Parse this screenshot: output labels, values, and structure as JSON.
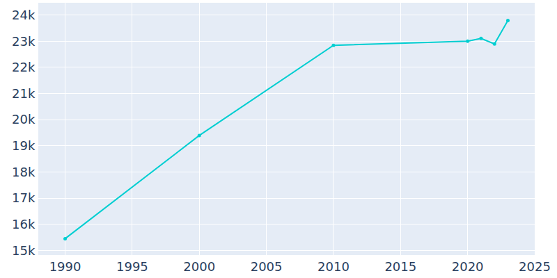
{
  "chart_data": {
    "type": "line",
    "x": [
      1990,
      2000,
      2010,
      2020,
      2021,
      2022,
      2023
    ],
    "values": [
      15447,
      19395,
      22842,
      23000,
      23105,
      22895,
      23790
    ],
    "color": "#00CED1",
    "marker": "circle",
    "line_style": "solid",
    "xlim": [
      1988,
      2025
    ],
    "xticks": [
      1990,
      1995,
      2000,
      2005,
      2010,
      2015,
      2020,
      2025
    ],
    "ylim": [
      14820,
      24470
    ],
    "yticks": [
      {
        "value": 15000,
        "label": "15k"
      },
      {
        "value": 16000,
        "label": "16k"
      },
      {
        "value": 17000,
        "label": "17k"
      },
      {
        "value": 18000,
        "label": "18k"
      },
      {
        "value": 19000,
        "label": "19k"
      },
      {
        "value": 20000,
        "label": "20k"
      },
      {
        "value": 21000,
        "label": "21k"
      },
      {
        "value": 22000,
        "label": "22k"
      },
      {
        "value": 23000,
        "label": "23k"
      },
      {
        "value": 24000,
        "label": "24k"
      }
    ],
    "grid": true
  }
}
